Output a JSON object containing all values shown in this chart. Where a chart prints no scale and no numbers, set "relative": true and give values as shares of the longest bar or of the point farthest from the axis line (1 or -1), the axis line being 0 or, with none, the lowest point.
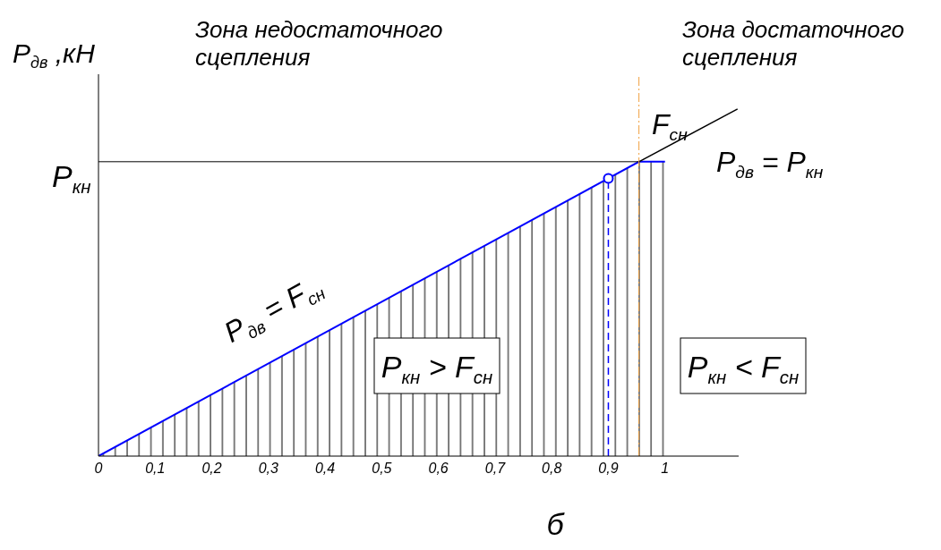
{
  "chart_data": {
    "type": "line",
    "xlabel": "б",
    "ylabel": "P$_{дв}$ ,кН",
    "relative": true,
    "xlim": [
      0,
      1.13
    ],
    "xticks": [
      {
        "value": 0,
        "label": "0"
      },
      {
        "value": 0.1,
        "label": "0,1"
      },
      {
        "value": 0.2,
        "label": "0,2"
      },
      {
        "value": 0.3,
        "label": "0,3"
      },
      {
        "value": 0.4,
        "label": "0,4"
      },
      {
        "value": 0.5,
        "label": "0,5"
      },
      {
        "value": 0.6,
        "label": "0,6"
      },
      {
        "value": 0.7,
        "label": "0,7"
      },
      {
        "value": 0.8,
        "label": "0,8"
      },
      {
        "value": 0.9,
        "label": "0,9"
      },
      {
        "value": 1,
        "label": "1"
      }
    ],
    "series": [
      {
        "type": "area",
        "color": "#0000ff",
        "x": [
          0,
          0.954,
          1
        ],
        "values": [
          0,
          0.848,
          0.848
        ]
      },
      {
        "color": "#000000",
        "x": [
          0.954,
          1.128
        ],
        "values": [
          0.848,
          1
        ]
      },
      {
        "color": "#0000ff",
        "line_style": "dashed",
        "x": [
          0.9,
          0.9
        ],
        "values": [
          0,
          0.8
        ]
      },
      {
        "type": "scatter",
        "color": "#0000ff",
        "marker": "circle",
        "x": [
          0.9
        ],
        "values": [
          0.8
        ]
      }
    ],
    "ref_lines": [
      {
        "axis": "y",
        "value": 0.848,
        "label": "P$_{кн}$",
        "color": "#000000"
      },
      {
        "axis": "x",
        "value": 0.954,
        "color": "#f0a040",
        "line_style": "dashed"
      }
    ],
    "annotations": [
      "Зона недостаточного сцепления",
      "Зона достаточного сцепления",
      "F$_{сн}$",
      "P$_{дв}$ = P$_{кн}$",
      "P$_{дв}$ = F$_{сн}$",
      "P$_{кн}$ > F$_{сн}$",
      "P$_{кн}$ < F$_{сн}$"
    ]
  }
}
